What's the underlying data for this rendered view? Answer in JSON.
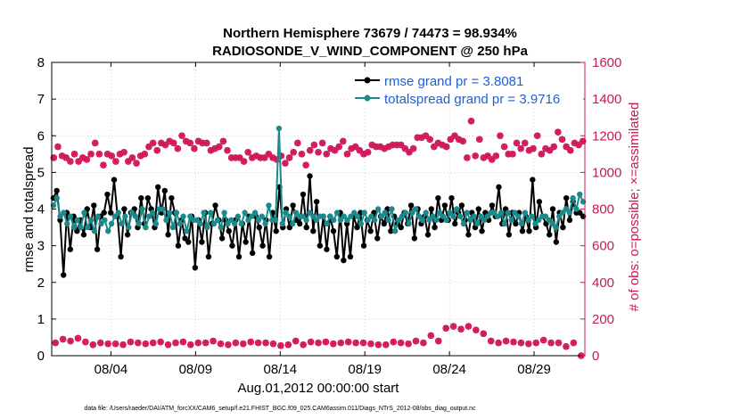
{
  "chart_data": {
    "type": "line",
    "title_line1": "Northern Hemisphere 73679 / 74473 = 98.934%",
    "title_line2": "RADIOSONDE_V_WIND_COMPONENT @ 250 hPa",
    "xlabel": "Aug.01,2012 00:00:00 start",
    "ylabel_left": "rmse and totalspread",
    "ylabel_right": "# of obs: o=possible; ×=assimilated",
    "xlim": [
      0,
      31.5
    ],
    "ylim_left": [
      0,
      8
    ],
    "ylim_right": [
      0,
      1600
    ],
    "x_ticks": [
      {
        "x": 3.5,
        "label": "08/04"
      },
      {
        "x": 8.5,
        "label": "08/09"
      },
      {
        "x": 13.5,
        "label": "08/14"
      },
      {
        "x": 18.5,
        "label": "08/19"
      },
      {
        "x": 23.5,
        "label": "08/24"
      },
      {
        "x": 28.5,
        "label": "08/29"
      }
    ],
    "y_left_ticks": [
      "0",
      "1",
      "2",
      "3",
      "4",
      "5",
      "6",
      "7",
      "8"
    ],
    "y_right_ticks": [
      "0",
      "200",
      "400",
      "600",
      "800",
      "1000",
      "1200",
      "1400",
      "1600"
    ],
    "legend": [
      {
        "name": "rmse grand pr = 3.8081",
        "color": "#000000"
      },
      {
        "name": "totalspread grand pr = 3.9716",
        "color": "#1a8a8c"
      }
    ],
    "series": [
      {
        "name": "rmse",
        "color": "#000000",
        "values": [
          4.3,
          4.5,
          3.7,
          2.2,
          3.9,
          2.9,
          3.8,
          3.4,
          3.7,
          3.3,
          4.0,
          3.5,
          4.1,
          2.9,
          3.8,
          3.9,
          4.4,
          3.9,
          4.8,
          3.8,
          2.7,
          4.0,
          3.3,
          3.9,
          4.0,
          3.5,
          4.3,
          3.6,
          4.3,
          4.0,
          3.5,
          4.6,
          3.9,
          4.5,
          3.3,
          4.3,
          3.9,
          3.0,
          3.7,
          3.2,
          3.1,
          3.8,
          2.4,
          3.7,
          3.1,
          3.9,
          2.7,
          3.6,
          4.1,
          3.7,
          3.2,
          3.7,
          3.4,
          3.0,
          3.7,
          2.7,
          3.6,
          3.1,
          3.8,
          2.8,
          3.8,
          3.5,
          3.0,
          3.7,
          2.7,
          3.9,
          3.4,
          4.6,
          3.5,
          4.0,
          3.5,
          4.1,
          3.7,
          3.6,
          4.4,
          3.5,
          4.9,
          3.4,
          4.2,
          3.0,
          3.8,
          2.9,
          3.8,
          3.4,
          2.7,
          3.9,
          2.6,
          3.6,
          2.7,
          3.8,
          3.5,
          3.9,
          3.0,
          3.7,
          3.4,
          3.9,
          3.2,
          3.8,
          3.6,
          4.0,
          3.4,
          3.8,
          3.6,
          3.5,
          3.9,
          3.6,
          4.1,
          3.2,
          4.0,
          3.6,
          3.8,
          3.3,
          4.0,
          3.5,
          4.3,
          3.7,
          4.1,
          3.7,
          4.3,
          3.6,
          3.9,
          4.1,
          3.7,
          3.3,
          3.9,
          3.5,
          4.0,
          3.4,
          3.9,
          3.7,
          4.1,
          3.8,
          4.6,
          3.6,
          4.0,
          3.3,
          3.9,
          3.6,
          3.9,
          3.4,
          3.8,
          3.4,
          4.8,
          3.5,
          4.2,
          3.8,
          3.6,
          3.3,
          4.0,
          3.1,
          3.9,
          3.5,
          4.3,
          3.7,
          4.2,
          3.9,
          3.9,
          3.8
        ]
      },
      {
        "name": "totalspread",
        "color": "#1a8a8c",
        "values": [
          4.1,
          4.3,
          3.8,
          3.9,
          3.6,
          3.8,
          3.5,
          3.7,
          3.5,
          3.9,
          3.5,
          3.7,
          3.4,
          3.8,
          3.6,
          3.7,
          3.4,
          3.6,
          3.8,
          3.9,
          3.6,
          3.8,
          3.5,
          3.9,
          3.8,
          3.6,
          4.0,
          3.5,
          3.8,
          3.9,
          3.6,
          4.0,
          4.0,
          3.7,
          3.9,
          3.5,
          3.9,
          3.6,
          3.8,
          3.4,
          3.8,
          3.7,
          3.7,
          3.6,
          3.9,
          3.5,
          3.9,
          3.6,
          3.7,
          3.5,
          3.9,
          3.6,
          3.7,
          3.6,
          3.8,
          3.6,
          3.9,
          3.7,
          3.8,
          3.9,
          3.7,
          3.8,
          3.6,
          4.1,
          3.7,
          3.7,
          6.2,
          3.6,
          3.9,
          3.8,
          3.6,
          3.9,
          3.8,
          3.8,
          3.7,
          3.9,
          3.8,
          3.7,
          3.8,
          3.8,
          3.6,
          3.8,
          3.7,
          3.9,
          3.7,
          3.8,
          3.7,
          3.8,
          3.9,
          3.8,
          3.6,
          3.9,
          3.7,
          3.8,
          3.7,
          4.0,
          3.8,
          3.9,
          3.7,
          4.0,
          3.4,
          3.7,
          3.8,
          3.9,
          3.6,
          3.9,
          4.0,
          3.8,
          3.7,
          3.9,
          3.7,
          3.8,
          3.7,
          3.9,
          3.8,
          3.7,
          3.9,
          3.8,
          4.0,
          3.8,
          3.6,
          3.9,
          3.7,
          3.8,
          3.6,
          3.8,
          3.7,
          3.8,
          3.9,
          3.9,
          3.8,
          3.9,
          3.6,
          3.9,
          3.7,
          3.9,
          3.8,
          3.6,
          3.9,
          3.7,
          3.8,
          3.6,
          3.7,
          3.8,
          3.8,
          3.7,
          3.6,
          3.5,
          3.8,
          3.9,
          4.0,
          3.9,
          4.3,
          4.0,
          4.4,
          4.2
        ]
      },
      {
        "name": "obs possible (right axis)",
        "color": "#d4175c",
        "values_per_day": [
          70,
          90,
          80,
          95,
          75,
          60,
          70,
          65,
          65,
          60,
          75,
          70,
          65,
          70,
          75,
          60,
          70,
          75,
          60,
          70,
          70,
          80,
          65,
          60,
          70,
          65,
          75,
          70,
          70,
          65,
          55,
          60,
          80,
          60,
          75,
          70,
          75,
          65,
          70,
          75,
          70,
          70,
          65,
          60,
          60,
          75,
          70,
          65,
          80,
          70,
          110,
          80,
          150,
          160,
          145,
          160,
          140,
          120,
          80,
          70,
          80,
          75,
          70,
          65,
          70,
          85,
          70,
          70,
          50,
          70,
          0
        ]
      },
      {
        "name": "obs assimilated (right axis, high band)",
        "color": "#d4175c",
        "values": [
          1080,
          1140,
          1090,
          1080,
          1060,
          1100,
          1060,
          1080,
          1070,
          1100,
          1160,
          1100,
          1040,
          1100,
          1090,
          1060,
          1100,
          1110,
          1060,
          1080,
          1050,
          1090,
          1100,
          1140,
          1160,
          1120,
          1160,
          1150,
          1170,
          1160,
          1130,
          1200,
          1170,
          1160,
          1130,
          1170,
          1160,
          1160,
          1120,
          1130,
          1140,
          1170,
          1120,
          1080,
          1080,
          1080,
          1060,
          1110,
          1080,
          1090,
          1080,
          1080,
          1100,
          1080,
          1070,
          1090,
          1050,
          1080,
          1110,
          1160,
          1100,
          1040,
          1120,
          1150,
          1110,
          1160,
          1100,
          1130,
          1120,
          1140,
          1170,
          1100,
          1130,
          1140,
          1120,
          1100,
          1110,
          1150,
          1140,
          1140,
          1130,
          1140,
          1150,
          1150,
          1150,
          1130,
          1110,
          1130,
          1190,
          1190,
          1200,
          1180,
          1140,
          1160,
          1150,
          1140,
          1180,
          1200,
          1180,
          1170,
          1080,
          1280,
          1090,
          1180,
          1080,
          1090,
          1070,
          1090,
          1200,
          1140,
          1100,
          1100,
          1160,
          1130,
          1160,
          1120,
          1130,
          1200,
          1100,
          1130,
          1120,
          1140,
          1220,
          1180,
          1140,
          1120,
          1160,
          1150,
          1170
        ]
      }
    ],
    "footnote": "data file: /Users/raeder/DAI/ATM_forcXX/CAM6_setup/f.e21.FHIST_BGC.f09_025.CAM6assim.011/Diags_NTrS_2012-08/obs_diag_output.nc"
  }
}
